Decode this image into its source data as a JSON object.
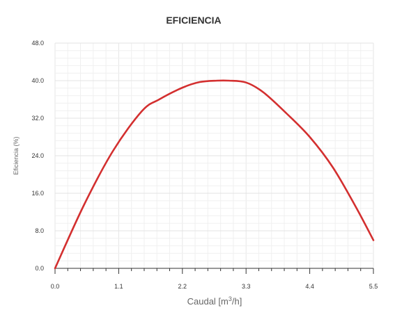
{
  "chart_data": {
    "type": "line",
    "title": "EFICIENCIA",
    "xlabel": "Caudal [m",
    "xlabel_sup": "3",
    "xlabel_tail": "/h]",
    "ylabel": "Eficiencia (%)",
    "xlim": [
      0,
      5.5
    ],
    "ylim": [
      0,
      48
    ],
    "xticks": [
      "0.0",
      "1.1",
      "2.2",
      "3.3",
      "4.4",
      "5.5"
    ],
    "yticks": [
      "0.0",
      "8.0",
      "16.0",
      "24.0",
      "32.0",
      "40.0",
      "48.0"
    ],
    "grid": true,
    "series": [
      {
        "color": "#d32f2f",
        "x": [
          0.0,
          0.5,
          1.0,
          1.5,
          1.8,
          2.2,
          2.5,
          2.8,
          3.0,
          3.3,
          3.6,
          4.0,
          4.4,
          4.8,
          5.2,
          5.5
        ],
        "y": [
          0.0,
          13.5,
          25.0,
          33.5,
          36.0,
          38.5,
          39.7,
          40.0,
          40.0,
          39.6,
          37.5,
          33.0,
          28.0,
          21.5,
          13.0,
          6.0
        ]
      }
    ]
  }
}
